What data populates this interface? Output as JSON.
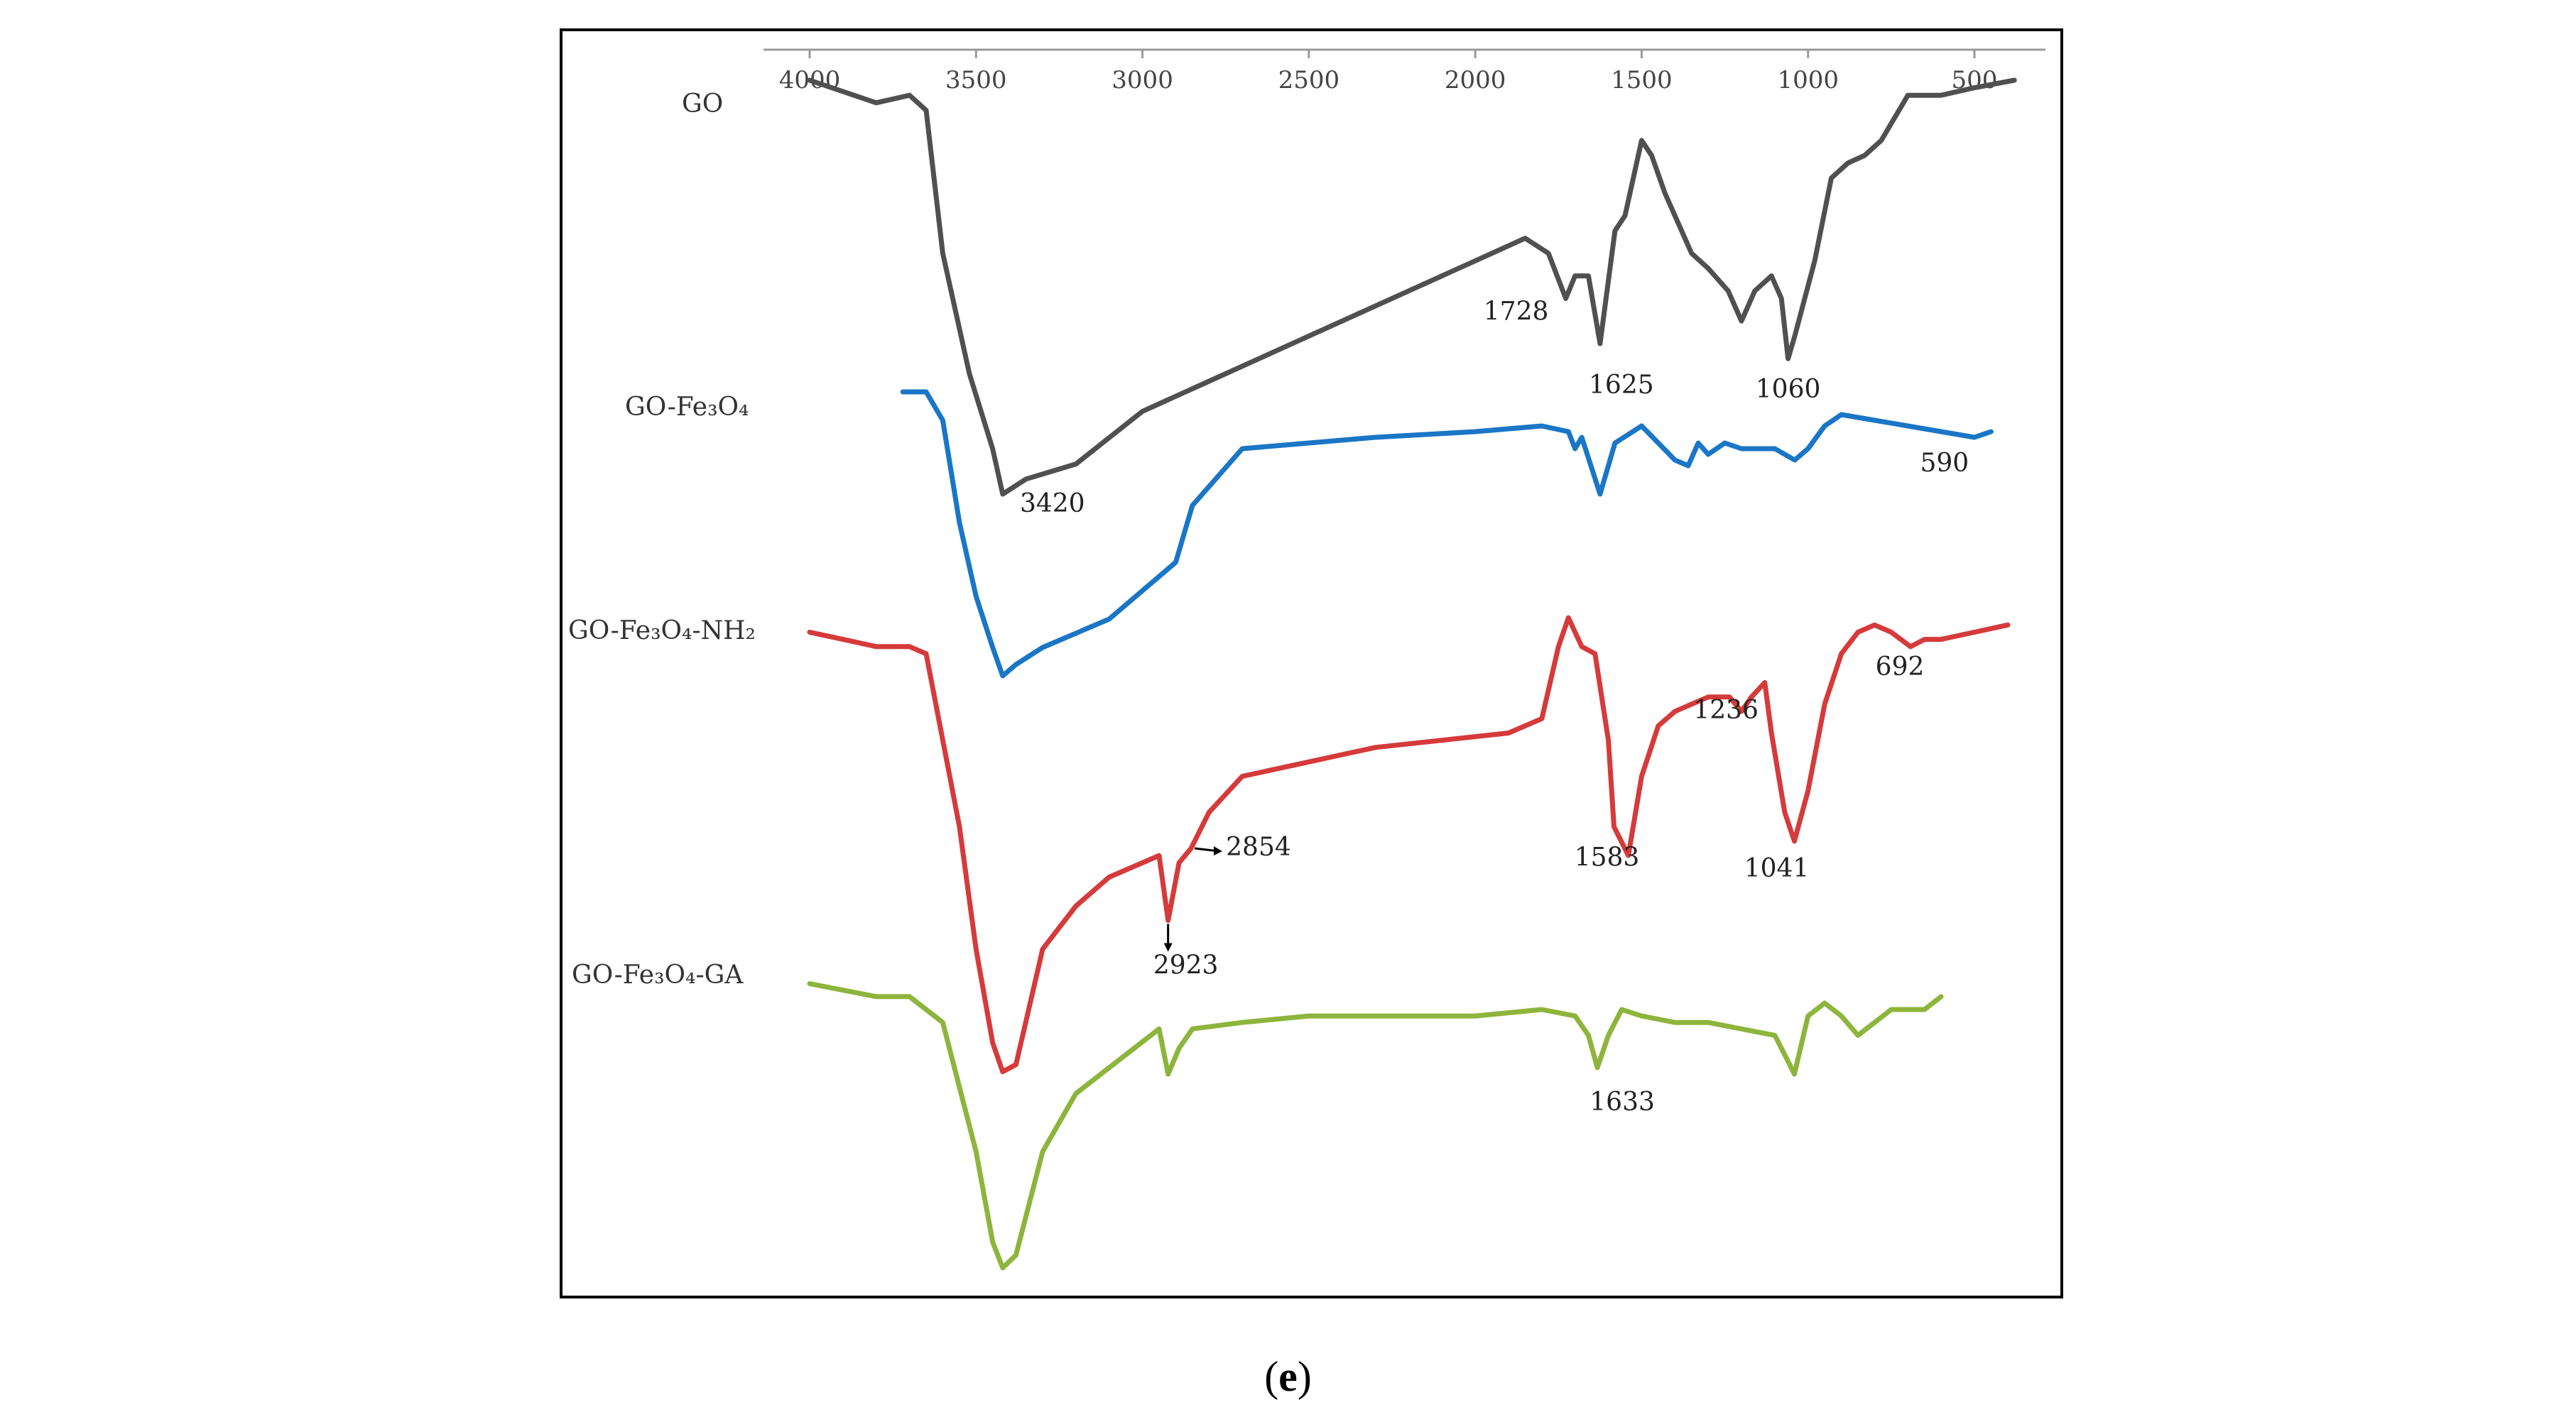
{
  "chart_data": {
    "type": "line",
    "title": "",
    "xlabel": "",
    "ylabel": "",
    "x_axis": {
      "reversed": true,
      "xlim": [
        4150,
        380
      ],
      "ticks": [
        4000,
        3500,
        3000,
        2500,
        2000,
        1500,
        1000,
        500
      ]
    },
    "ylim": [
      0,
      100
    ],
    "grid": false,
    "legend": "inline-left",
    "colors": {
      "GO": "#505050",
      "GO-Fe3O4": "#1a76c6",
      "GO-Fe3O4-NH2": "#d63a3a",
      "GO-Fe3O4-GA": "#8db53c"
    },
    "series": [
      {
        "name": "GO",
        "label": "GO",
        "color": "#505050",
        "points": [
          [
            4000,
            95
          ],
          [
            3800,
            92
          ],
          [
            3700,
            93
          ],
          [
            3650,
            91
          ],
          [
            3600,
            72
          ],
          [
            3520,
            56
          ],
          [
            3450,
            46
          ],
          [
            3420,
            40
          ],
          [
            3350,
            42
          ],
          [
            3200,
            44
          ],
          [
            3000,
            51
          ],
          [
            2800,
            55
          ],
          [
            2600,
            59
          ],
          [
            2400,
            63
          ],
          [
            2200,
            67
          ],
          [
            2000,
            71
          ],
          [
            1850,
            74
          ],
          [
            1780,
            72
          ],
          [
            1728,
            66
          ],
          [
            1700,
            69
          ],
          [
            1660,
            69
          ],
          [
            1625,
            60
          ],
          [
            1580,
            75
          ],
          [
            1550,
            77
          ],
          [
            1500,
            87
          ],
          [
            1470,
            85
          ],
          [
            1430,
            80
          ],
          [
            1390,
            76
          ],
          [
            1350,
            72
          ],
          [
            1300,
            70
          ],
          [
            1240,
            67
          ],
          [
            1200,
            63
          ],
          [
            1160,
            67
          ],
          [
            1110,
            69
          ],
          [
            1080,
            66
          ],
          [
            1060,
            58
          ],
          [
            1040,
            61
          ],
          [
            980,
            71
          ],
          [
            930,
            82
          ],
          [
            880,
            84
          ],
          [
            830,
            85
          ],
          [
            780,
            87
          ],
          [
            700,
            93
          ],
          [
            600,
            93
          ],
          [
            500,
            94
          ],
          [
            380,
            95
          ]
        ]
      },
      {
        "name": "GO-Fe3O4",
        "label": "GO-Fe₃O₄",
        "color": "#1a76c6",
        "points": [
          [
            3720,
            96
          ],
          [
            3650,
            96
          ],
          [
            3600,
            91
          ],
          [
            3550,
            73
          ],
          [
            3500,
            60
          ],
          [
            3450,
            51
          ],
          [
            3420,
            46
          ],
          [
            3380,
            48
          ],
          [
            3300,
            51
          ],
          [
            3100,
            56
          ],
          [
            2900,
            66
          ],
          [
            2850,
            76
          ],
          [
            2700,
            86
          ],
          [
            2500,
            87
          ],
          [
            2300,
            88
          ],
          [
            2000,
            89
          ],
          [
            1800,
            90
          ],
          [
            1720,
            89
          ],
          [
            1700,
            86
          ],
          [
            1680,
            88
          ],
          [
            1625,
            78
          ],
          [
            1580,
            87
          ],
          [
            1500,
            90
          ],
          [
            1450,
            87
          ],
          [
            1400,
            84
          ],
          [
            1360,
            83
          ],
          [
            1330,
            87
          ],
          [
            1300,
            85
          ],
          [
            1250,
            87
          ],
          [
            1200,
            86
          ],
          [
            1100,
            86
          ],
          [
            1040,
            84
          ],
          [
            1000,
            86
          ],
          [
            950,
            90
          ],
          [
            900,
            92
          ],
          [
            800,
            91
          ],
          [
            700,
            90
          ],
          [
            600,
            89
          ],
          [
            500,
            88
          ],
          [
            450,
            89
          ]
        ]
      },
      {
        "name": "GO-Fe3O4-NH2",
        "label": "GO-Fe₃O₄-NH₂",
        "color": "#d63a3a",
        "points": [
          [
            4000,
            97
          ],
          [
            3900,
            96
          ],
          [
            3800,
            95
          ],
          [
            3700,
            95
          ],
          [
            3650,
            94
          ],
          [
            3550,
            70
          ],
          [
            3500,
            53
          ],
          [
            3450,
            40
          ],
          [
            3420,
            36
          ],
          [
            3380,
            37
          ],
          [
            3300,
            53
          ],
          [
            3200,
            59
          ],
          [
            3100,
            63
          ],
          [
            2950,
            66
          ],
          [
            2923,
            57
          ],
          [
            2890,
            65
          ],
          [
            2854,
            67
          ],
          [
            2800,
            72
          ],
          [
            2700,
            77
          ],
          [
            2500,
            79
          ],
          [
            2300,
            81
          ],
          [
            2100,
            82
          ],
          [
            1900,
            83
          ],
          [
            1800,
            85
          ],
          [
            1750,
            95
          ],
          [
            1720,
            99
          ],
          [
            1680,
            95
          ],
          [
            1640,
            94
          ],
          [
            1600,
            82
          ],
          [
            1583,
            70
          ],
          [
            1540,
            66
          ],
          [
            1500,
            77
          ],
          [
            1450,
            84
          ],
          [
            1400,
            86
          ],
          [
            1300,
            88
          ],
          [
            1236,
            88
          ],
          [
            1200,
            86
          ],
          [
            1170,
            88
          ],
          [
            1130,
            90
          ],
          [
            1110,
            83
          ],
          [
            1070,
            72
          ],
          [
            1041,
            68
          ],
          [
            1000,
            75
          ],
          [
            950,
            87
          ],
          [
            900,
            94
          ],
          [
            850,
            97
          ],
          [
            800,
            98
          ],
          [
            750,
            97
          ],
          [
            692,
            95
          ],
          [
            650,
            96
          ],
          [
            600,
            96
          ],
          [
            500,
            97
          ],
          [
            400,
            98
          ]
        ]
      },
      {
        "name": "GO-Fe3O4-GA",
        "label": "GO-Fe₃O₄-GA",
        "color": "#8db53c",
        "points": [
          [
            4000,
            84
          ],
          [
            3900,
            83
          ],
          [
            3800,
            82
          ],
          [
            3700,
            82
          ],
          [
            3600,
            78
          ],
          [
            3500,
            58
          ],
          [
            3450,
            44
          ],
          [
            3420,
            40
          ],
          [
            3380,
            42
          ],
          [
            3300,
            58
          ],
          [
            3200,
            67
          ],
          [
            3050,
            73
          ],
          [
            2950,
            77
          ],
          [
            2923,
            70
          ],
          [
            2890,
            74
          ],
          [
            2850,
            77
          ],
          [
            2700,
            78
          ],
          [
            2500,
            79
          ],
          [
            2300,
            79
          ],
          [
            2000,
            79
          ],
          [
            1800,
            80
          ],
          [
            1700,
            79
          ],
          [
            1660,
            76
          ],
          [
            1633,
            71
          ],
          [
            1600,
            76
          ],
          [
            1560,
            80
          ],
          [
            1500,
            79
          ],
          [
            1400,
            78
          ],
          [
            1300,
            78
          ],
          [
            1200,
            77
          ],
          [
            1100,
            76
          ],
          [
            1070,
            73
          ],
          [
            1041,
            70
          ],
          [
            1000,
            79
          ],
          [
            950,
            81
          ],
          [
            900,
            79
          ],
          [
            850,
            76
          ],
          [
            800,
            78
          ],
          [
            750,
            80
          ],
          [
            700,
            80
          ],
          [
            650,
            80
          ],
          [
            600,
            82
          ]
        ]
      }
    ],
    "annotations": [
      {
        "series": "GO",
        "text": "3420",
        "x": 3420
      },
      {
        "series": "GO",
        "text": "1728",
        "x": 1728
      },
      {
        "series": "GO",
        "text": "1625",
        "x": 1625
      },
      {
        "series": "GO",
        "text": "1060",
        "x": 1060
      },
      {
        "series": "GO-Fe3O4",
        "text": "590",
        "x": 590
      },
      {
        "series": "GO-Fe3O4-NH2",
        "text": "2923",
        "x": 2923
      },
      {
        "series": "GO-Fe3O4-NH2",
        "text": "2854",
        "x": 2854
      },
      {
        "series": "GO-Fe3O4-NH2",
        "text": "1583",
        "x": 1583
      },
      {
        "series": "GO-Fe3O4-NH2",
        "text": "1236",
        "x": 1236
      },
      {
        "series": "GO-Fe3O4-NH2",
        "text": "1041",
        "x": 1041
      },
      {
        "series": "GO-Fe3O4-NH2",
        "text": "692",
        "x": 692
      },
      {
        "series": "GO-Fe3O4-GA",
        "text": "1633",
        "x": 1633
      }
    ]
  },
  "caption": {
    "open": "(",
    "letter": "e",
    "close": ")"
  }
}
